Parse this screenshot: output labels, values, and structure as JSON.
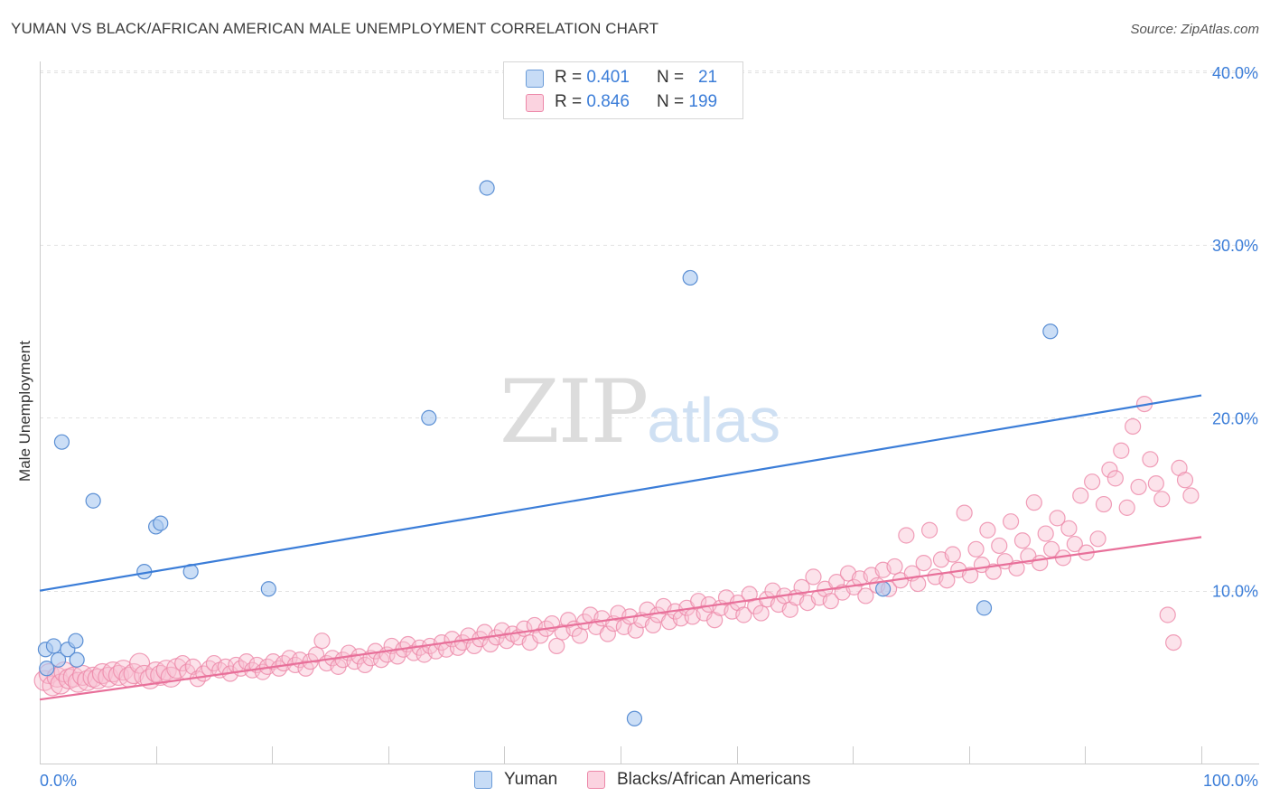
{
  "title": "YUMAN VS BLACK/AFRICAN AMERICAN MALE UNEMPLOYMENT CORRELATION CHART",
  "source": "Source: ZipAtlas.com",
  "watermark": {
    "zip": "ZIP",
    "atlas": "atlas"
  },
  "legend": [
    {
      "r_label": "R =",
      "r_value": "0.401",
      "n_label": "N =",
      "n_value": "21",
      "color": "#a8c8f0",
      "border": "#6a9bd8"
    },
    {
      "r_label": "R =",
      "r_value": "0.846",
      "n_label": "N =",
      "n_value": "199",
      "color": "#f9c0d2",
      "border": "#ec87a8"
    }
  ],
  "bottom_legend": [
    {
      "label": "Yuman",
      "color": "#a8c8f0",
      "border": "#6a9bd8"
    },
    {
      "label": "Blacks/African Americans",
      "color": "#f9c0d2",
      "border": "#ec87a8"
    }
  ],
  "chart_data": {
    "type": "scatter",
    "title": "YUMAN VS BLACK/AFRICAN AMERICAN MALE UNEMPLOYMENT CORRELATION CHART",
    "xlabel": "",
    "ylabel": "Male Unemployment",
    "xlim": [
      0,
      100
    ],
    "ylim": [
      0,
      41
    ],
    "x_tick_labels": [
      "0.0%",
      "100.0%"
    ],
    "y_ticks": [
      10,
      20,
      30,
      40
    ],
    "y_tick_labels": [
      "10.0%",
      "20.0%",
      "30.0%",
      "40.0%"
    ],
    "grid": true,
    "legend_position": "top-center",
    "colors": {
      "yuman": "#3b7dd8",
      "black": "#e8709a",
      "yuman_fill": "#a8c8f0",
      "black_fill": "#f9c0d2"
    },
    "series": [
      {
        "name": "Yuman",
        "r": 0.401,
        "n": 21,
        "trendline": {
          "x": [
            0,
            100
          ],
          "y": [
            10.0,
            21.3
          ]
        },
        "points": [
          [
            0.5,
            6.6
          ],
          [
            0.6,
            5.5
          ],
          [
            1.2,
            6.8
          ],
          [
            1.6,
            6.0
          ],
          [
            1.9,
            18.6
          ],
          [
            2.4,
            6.6
          ],
          [
            3.1,
            7.1
          ],
          [
            3.2,
            6.0
          ],
          [
            4.6,
            15.2
          ],
          [
            9.0,
            11.1
          ],
          [
            10.0,
            13.7
          ],
          [
            10.4,
            13.9
          ],
          [
            13.0,
            11.1
          ],
          [
            19.7,
            10.1
          ],
          [
            33.5,
            20.0
          ],
          [
            38.5,
            33.3
          ],
          [
            51.2,
            2.6
          ],
          [
            56.0,
            28.1
          ],
          [
            72.6,
            10.1
          ],
          [
            81.3,
            9.0
          ],
          [
            87.0,
            25.0
          ]
        ]
      },
      {
        "name": "Blacks/African Americans",
        "r": 0.846,
        "n": 199,
        "trendline": {
          "x": [
            0,
            100
          ],
          "y": [
            3.7,
            13.1
          ]
        },
        "points": [
          [
            0.4,
            4.8
          ],
          [
            0.8,
            5.2
          ],
          [
            1.1,
            4.5
          ],
          [
            1.5,
            5.0
          ],
          [
            1.8,
            4.6
          ],
          [
            2.1,
            5.3
          ],
          [
            2.5,
            4.9
          ],
          [
            2.9,
            5.0
          ],
          [
            3.3,
            4.7
          ],
          [
            3.7,
            5.1
          ],
          [
            4.1,
            4.8
          ],
          [
            4.6,
            5.0
          ],
          [
            5.0,
            4.9
          ],
          [
            5.4,
            5.2
          ],
          [
            5.9,
            5.0
          ],
          [
            6.3,
            5.3
          ],
          [
            6.8,
            5.1
          ],
          [
            7.2,
            5.4
          ],
          [
            7.7,
            5.0
          ],
          [
            8.1,
            5.2
          ],
          [
            8.6,
            5.8
          ],
          [
            9.0,
            5.1
          ],
          [
            9.5,
            4.9
          ],
          [
            10.0,
            5.3
          ],
          [
            10.4,
            5.1
          ],
          [
            10.9,
            5.4
          ],
          [
            11.3,
            5.0
          ],
          [
            11.8,
            5.5
          ],
          [
            12.3,
            5.8
          ],
          [
            12.7,
            5.3
          ],
          [
            13.2,
            5.6
          ],
          [
            13.6,
            4.9
          ],
          [
            14.1,
            5.2
          ],
          [
            14.6,
            5.5
          ],
          [
            15.0,
            5.8
          ],
          [
            15.5,
            5.4
          ],
          [
            16.0,
            5.6
          ],
          [
            16.4,
            5.2
          ],
          [
            16.9,
            5.7
          ],
          [
            17.3,
            5.5
          ],
          [
            17.8,
            5.9
          ],
          [
            18.3,
            5.4
          ],
          [
            18.7,
            5.7
          ],
          [
            19.2,
            5.3
          ],
          [
            19.6,
            5.6
          ],
          [
            20.1,
            5.9
          ],
          [
            20.6,
            5.5
          ],
          [
            21.0,
            5.8
          ],
          [
            21.5,
            6.1
          ],
          [
            22.0,
            5.7
          ],
          [
            22.4,
            6.0
          ],
          [
            22.9,
            5.5
          ],
          [
            23.3,
            5.9
          ],
          [
            23.8,
            6.3
          ],
          [
            24.3,
            7.1
          ],
          [
            24.7,
            5.8
          ],
          [
            25.2,
            6.1
          ],
          [
            25.7,
            5.6
          ],
          [
            26.1,
            6.0
          ],
          [
            26.6,
            6.4
          ],
          [
            27.1,
            5.9
          ],
          [
            27.5,
            6.2
          ],
          [
            28.0,
            5.7
          ],
          [
            28.5,
            6.1
          ],
          [
            28.9,
            6.5
          ],
          [
            29.4,
            6.0
          ],
          [
            29.9,
            6.3
          ],
          [
            30.3,
            6.8
          ],
          [
            30.8,
            6.2
          ],
          [
            31.3,
            6.6
          ],
          [
            31.7,
            6.9
          ],
          [
            32.2,
            6.4
          ],
          [
            32.7,
            6.7
          ],
          [
            33.1,
            6.3
          ],
          [
            33.6,
            6.8
          ],
          [
            34.1,
            6.5
          ],
          [
            34.6,
            7.0
          ],
          [
            35.0,
            6.6
          ],
          [
            35.5,
            7.2
          ],
          [
            36.0,
            6.7
          ],
          [
            36.4,
            7.0
          ],
          [
            36.9,
            7.4
          ],
          [
            37.4,
            6.8
          ],
          [
            37.9,
            7.2
          ],
          [
            38.3,
            7.6
          ],
          [
            38.8,
            6.9
          ],
          [
            39.3,
            7.3
          ],
          [
            39.8,
            7.7
          ],
          [
            40.2,
            7.1
          ],
          [
            40.7,
            7.5
          ],
          [
            41.2,
            7.3
          ],
          [
            41.7,
            7.8
          ],
          [
            42.2,
            7.0
          ],
          [
            42.6,
            8.0
          ],
          [
            43.1,
            7.4
          ],
          [
            43.6,
            7.8
          ],
          [
            44.1,
            8.1
          ],
          [
            44.5,
            6.8
          ],
          [
            45.0,
            7.6
          ],
          [
            45.5,
            8.3
          ],
          [
            46.0,
            7.8
          ],
          [
            46.5,
            7.4
          ],
          [
            46.9,
            8.2
          ],
          [
            47.4,
            8.6
          ],
          [
            47.9,
            7.9
          ],
          [
            48.4,
            8.4
          ],
          [
            48.9,
            7.5
          ],
          [
            49.4,
            8.1
          ],
          [
            49.8,
            8.7
          ],
          [
            50.3,
            7.9
          ],
          [
            50.8,
            8.5
          ],
          [
            51.3,
            7.7
          ],
          [
            51.8,
            8.3
          ],
          [
            52.3,
            8.9
          ],
          [
            52.8,
            8.0
          ],
          [
            53.2,
            8.6
          ],
          [
            53.7,
            9.1
          ],
          [
            54.2,
            8.2
          ],
          [
            54.7,
            8.8
          ],
          [
            55.2,
            8.4
          ],
          [
            55.7,
            9.0
          ],
          [
            56.2,
            8.5
          ],
          [
            56.7,
            9.4
          ],
          [
            57.2,
            8.7
          ],
          [
            57.6,
            9.2
          ],
          [
            58.1,
            8.3
          ],
          [
            58.6,
            9.0
          ],
          [
            59.1,
            9.6
          ],
          [
            59.6,
            8.8
          ],
          [
            60.1,
            9.3
          ],
          [
            60.6,
            8.6
          ],
          [
            61.1,
            9.8
          ],
          [
            61.6,
            9.1
          ],
          [
            62.1,
            8.7
          ],
          [
            62.6,
            9.5
          ],
          [
            63.1,
            10.0
          ],
          [
            63.6,
            9.2
          ],
          [
            64.1,
            9.7
          ],
          [
            64.6,
            8.9
          ],
          [
            65.1,
            9.6
          ],
          [
            65.6,
            10.2
          ],
          [
            66.1,
            9.3
          ],
          [
            66.6,
            10.8
          ],
          [
            67.1,
            9.6
          ],
          [
            67.6,
            10.1
          ],
          [
            68.1,
            9.4
          ],
          [
            68.6,
            10.5
          ],
          [
            69.1,
            9.9
          ],
          [
            69.6,
            11.0
          ],
          [
            70.1,
            10.2
          ],
          [
            70.6,
            10.7
          ],
          [
            71.1,
            9.7
          ],
          [
            71.6,
            10.9
          ],
          [
            72.1,
            10.3
          ],
          [
            72.6,
            11.2
          ],
          [
            73.1,
            10.1
          ],
          [
            73.6,
            11.4
          ],
          [
            74.1,
            10.6
          ],
          [
            74.6,
            13.2
          ],
          [
            75.1,
            11.0
          ],
          [
            75.6,
            10.4
          ],
          [
            76.1,
            11.6
          ],
          [
            76.6,
            13.5
          ],
          [
            77.1,
            10.8
          ],
          [
            77.6,
            11.8
          ],
          [
            78.1,
            10.6
          ],
          [
            78.6,
            12.1
          ],
          [
            79.1,
            11.2
          ],
          [
            79.6,
            14.5
          ],
          [
            80.1,
            10.9
          ],
          [
            80.6,
            12.4
          ],
          [
            81.1,
            11.5
          ],
          [
            81.6,
            13.5
          ],
          [
            82.1,
            11.1
          ],
          [
            82.6,
            12.6
          ],
          [
            83.1,
            11.7
          ],
          [
            83.6,
            14.0
          ],
          [
            84.1,
            11.3
          ],
          [
            84.6,
            12.9
          ],
          [
            85.1,
            12.0
          ],
          [
            85.6,
            15.1
          ],
          [
            86.1,
            11.6
          ],
          [
            86.6,
            13.3
          ],
          [
            87.1,
            12.4
          ],
          [
            87.6,
            14.2
          ],
          [
            88.1,
            11.9
          ],
          [
            88.6,
            13.6
          ],
          [
            89.1,
            12.7
          ],
          [
            89.6,
            15.5
          ],
          [
            90.1,
            12.2
          ],
          [
            90.6,
            16.3
          ],
          [
            91.1,
            13.0
          ],
          [
            91.6,
            15.0
          ],
          [
            92.1,
            17.0
          ],
          [
            92.6,
            16.5
          ],
          [
            93.1,
            18.1
          ],
          [
            93.6,
            14.8
          ],
          [
            94.1,
            19.5
          ],
          [
            94.6,
            16.0
          ],
          [
            95.1,
            20.8
          ],
          [
            95.6,
            17.6
          ],
          [
            96.1,
            16.2
          ],
          [
            96.6,
            15.3
          ],
          [
            97.1,
            8.6
          ],
          [
            97.6,
            7.0
          ],
          [
            98.1,
            17.1
          ],
          [
            98.6,
            16.4
          ],
          [
            99.1,
            15.5
          ]
        ]
      }
    ]
  }
}
